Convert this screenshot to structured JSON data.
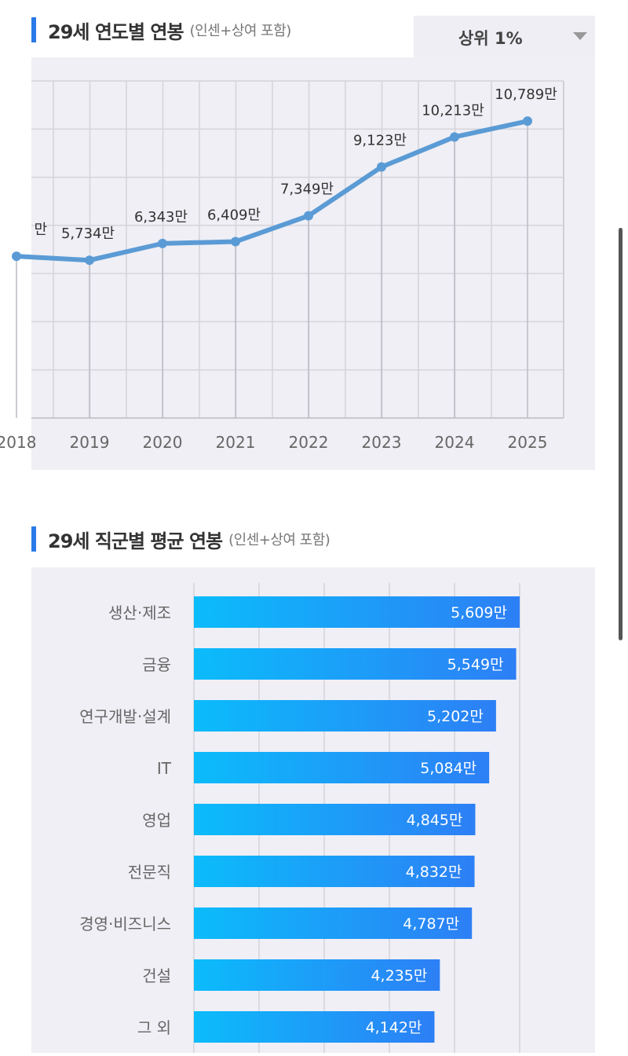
{
  "section1": {
    "title": "29세 연도별 연봉",
    "subtitle": "(인센+상여 포함)",
    "dropdown": {
      "selected": "상위 1%",
      "icon": "caret-down-icon"
    }
  },
  "section2": {
    "title": "29세 직군별 평균 연봉",
    "subtitle": "(인센+상여 포함)"
  },
  "colors": {
    "accent": "#2a7ae8",
    "line": "#5b9bd5",
    "bar_start": "#0bbcfb",
    "bar_end": "#2d7ff5",
    "panel": "#efeff5"
  },
  "chart_data": [
    {
      "type": "line",
      "x": [
        "2018",
        "2019",
        "2020",
        "2021",
        "2022",
        "2023",
        "2024",
        "2025"
      ],
      "values": [
        5880,
        5734,
        6343,
        6409,
        7349,
        9123,
        10213,
        10789
      ],
      "data_labels": [
        "만",
        "5,734만",
        "6,343만",
        "6,409만",
        "7,349만",
        "9,123만",
        "10,213만",
        "10,789만"
      ],
      "unit": "만",
      "ylim": [
        0,
        12250
      ],
      "grid": true
    },
    {
      "type": "bar",
      "orientation": "horizontal",
      "categories": [
        "생산·제조",
        "금융",
        "연구개발·설계",
        "IT",
        "영업",
        "전문직",
        "경영·비즈니스",
        "건설",
        "그 외"
      ],
      "values": [
        5609,
        5549,
        5202,
        5084,
        4845,
        4832,
        4787,
        4235,
        4142
      ],
      "data_labels": [
        "5,609만",
        "5,549만",
        "5,202만",
        "5,084만",
        "4,845만",
        "4,832만",
        "4,787만",
        "4,235만",
        "4,142만"
      ],
      "unit": "만",
      "xlim": [
        0,
        5609
      ],
      "grid": true
    }
  ]
}
